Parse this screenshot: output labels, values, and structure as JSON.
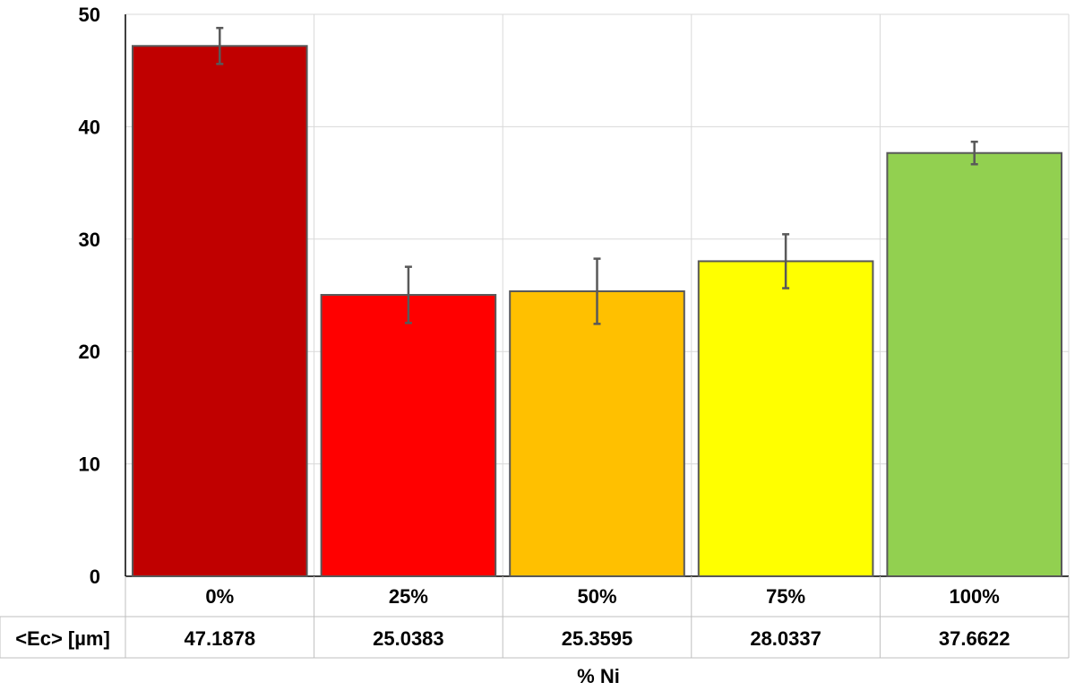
{
  "chart_data": {
    "type": "bar",
    "categories": [
      "0%",
      "25%",
      "50%",
      "75%",
      "100%"
    ],
    "values": [
      47.1878,
      25.0383,
      25.3595,
      28.0337,
      37.6622
    ],
    "errors": [
      1.6,
      2.5,
      2.9,
      2.4,
      1.0
    ],
    "bar_colors": [
      "#c00000",
      "#ff0000",
      "#ffc000",
      "#ffff00",
      "#92d050"
    ],
    "data_table": {
      "row_label": "<Ec> [µm]",
      "values": [
        "47.1878",
        "25.0383",
        "25.3595",
        "28.0337",
        "37.6622"
      ]
    },
    "xlabel": "% Ni",
    "ylabel": "",
    "ylim": [
      0,
      50
    ],
    "yticks": [
      0,
      10,
      20,
      30,
      40,
      50
    ],
    "grid": true
  }
}
